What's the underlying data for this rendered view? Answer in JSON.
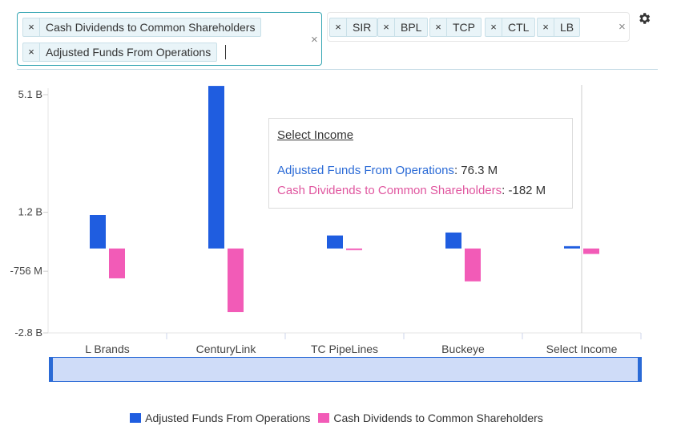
{
  "metric_selector": {
    "chips": [
      "Cash Dividends to Common Shareholders",
      "Adjusted Funds From Operations"
    ],
    "remove_glyph": "×",
    "clear_glyph": "×"
  },
  "ticker_selector": {
    "chips": [
      "SIR",
      "BPL",
      "TCP",
      "CTL",
      "LB"
    ],
    "remove_glyph": "×",
    "clear_glyph": "×"
  },
  "settings_icon": "gear-icon",
  "tooltip": {
    "title": "Select Income",
    "rows": [
      {
        "series": "Adjusted Funds From Operations",
        "value": "76.3 M"
      },
      {
        "series": "Cash Dividends to Common Shareholders",
        "value": "-182 M"
      }
    ]
  },
  "colors": {
    "afo": "#1f5de0",
    "dividends": "#f25bb7"
  },
  "chart_data": {
    "type": "bar",
    "categories": [
      "L Brands",
      "CenturyLink",
      "TC PipeLines",
      "Buckeye",
      "Select Income"
    ],
    "series": [
      {
        "name": "Adjusted Funds From Operations",
        "values": [
          1.11,
          5.39,
          0.43,
          0.53,
          0.0763
        ]
      },
      {
        "name": "Cash Dividends to Common Shareholders",
        "values": [
          -0.99,
          -2.11,
          -0.05,
          -1.09,
          -0.182
        ]
      }
    ],
    "unit": "B",
    "y_ticks": [
      "5.1 B",
      "1.2 B",
      "-756 M",
      "-2.8 B"
    ],
    "y_tick_values": [
      5.1,
      1.2,
      -0.756,
      -2.8
    ],
    "ylim": [
      -2.8,
      5.1
    ],
    "title": "",
    "xlabel": "",
    "ylabel": "",
    "grid": false,
    "legend_position": "bottom"
  }
}
